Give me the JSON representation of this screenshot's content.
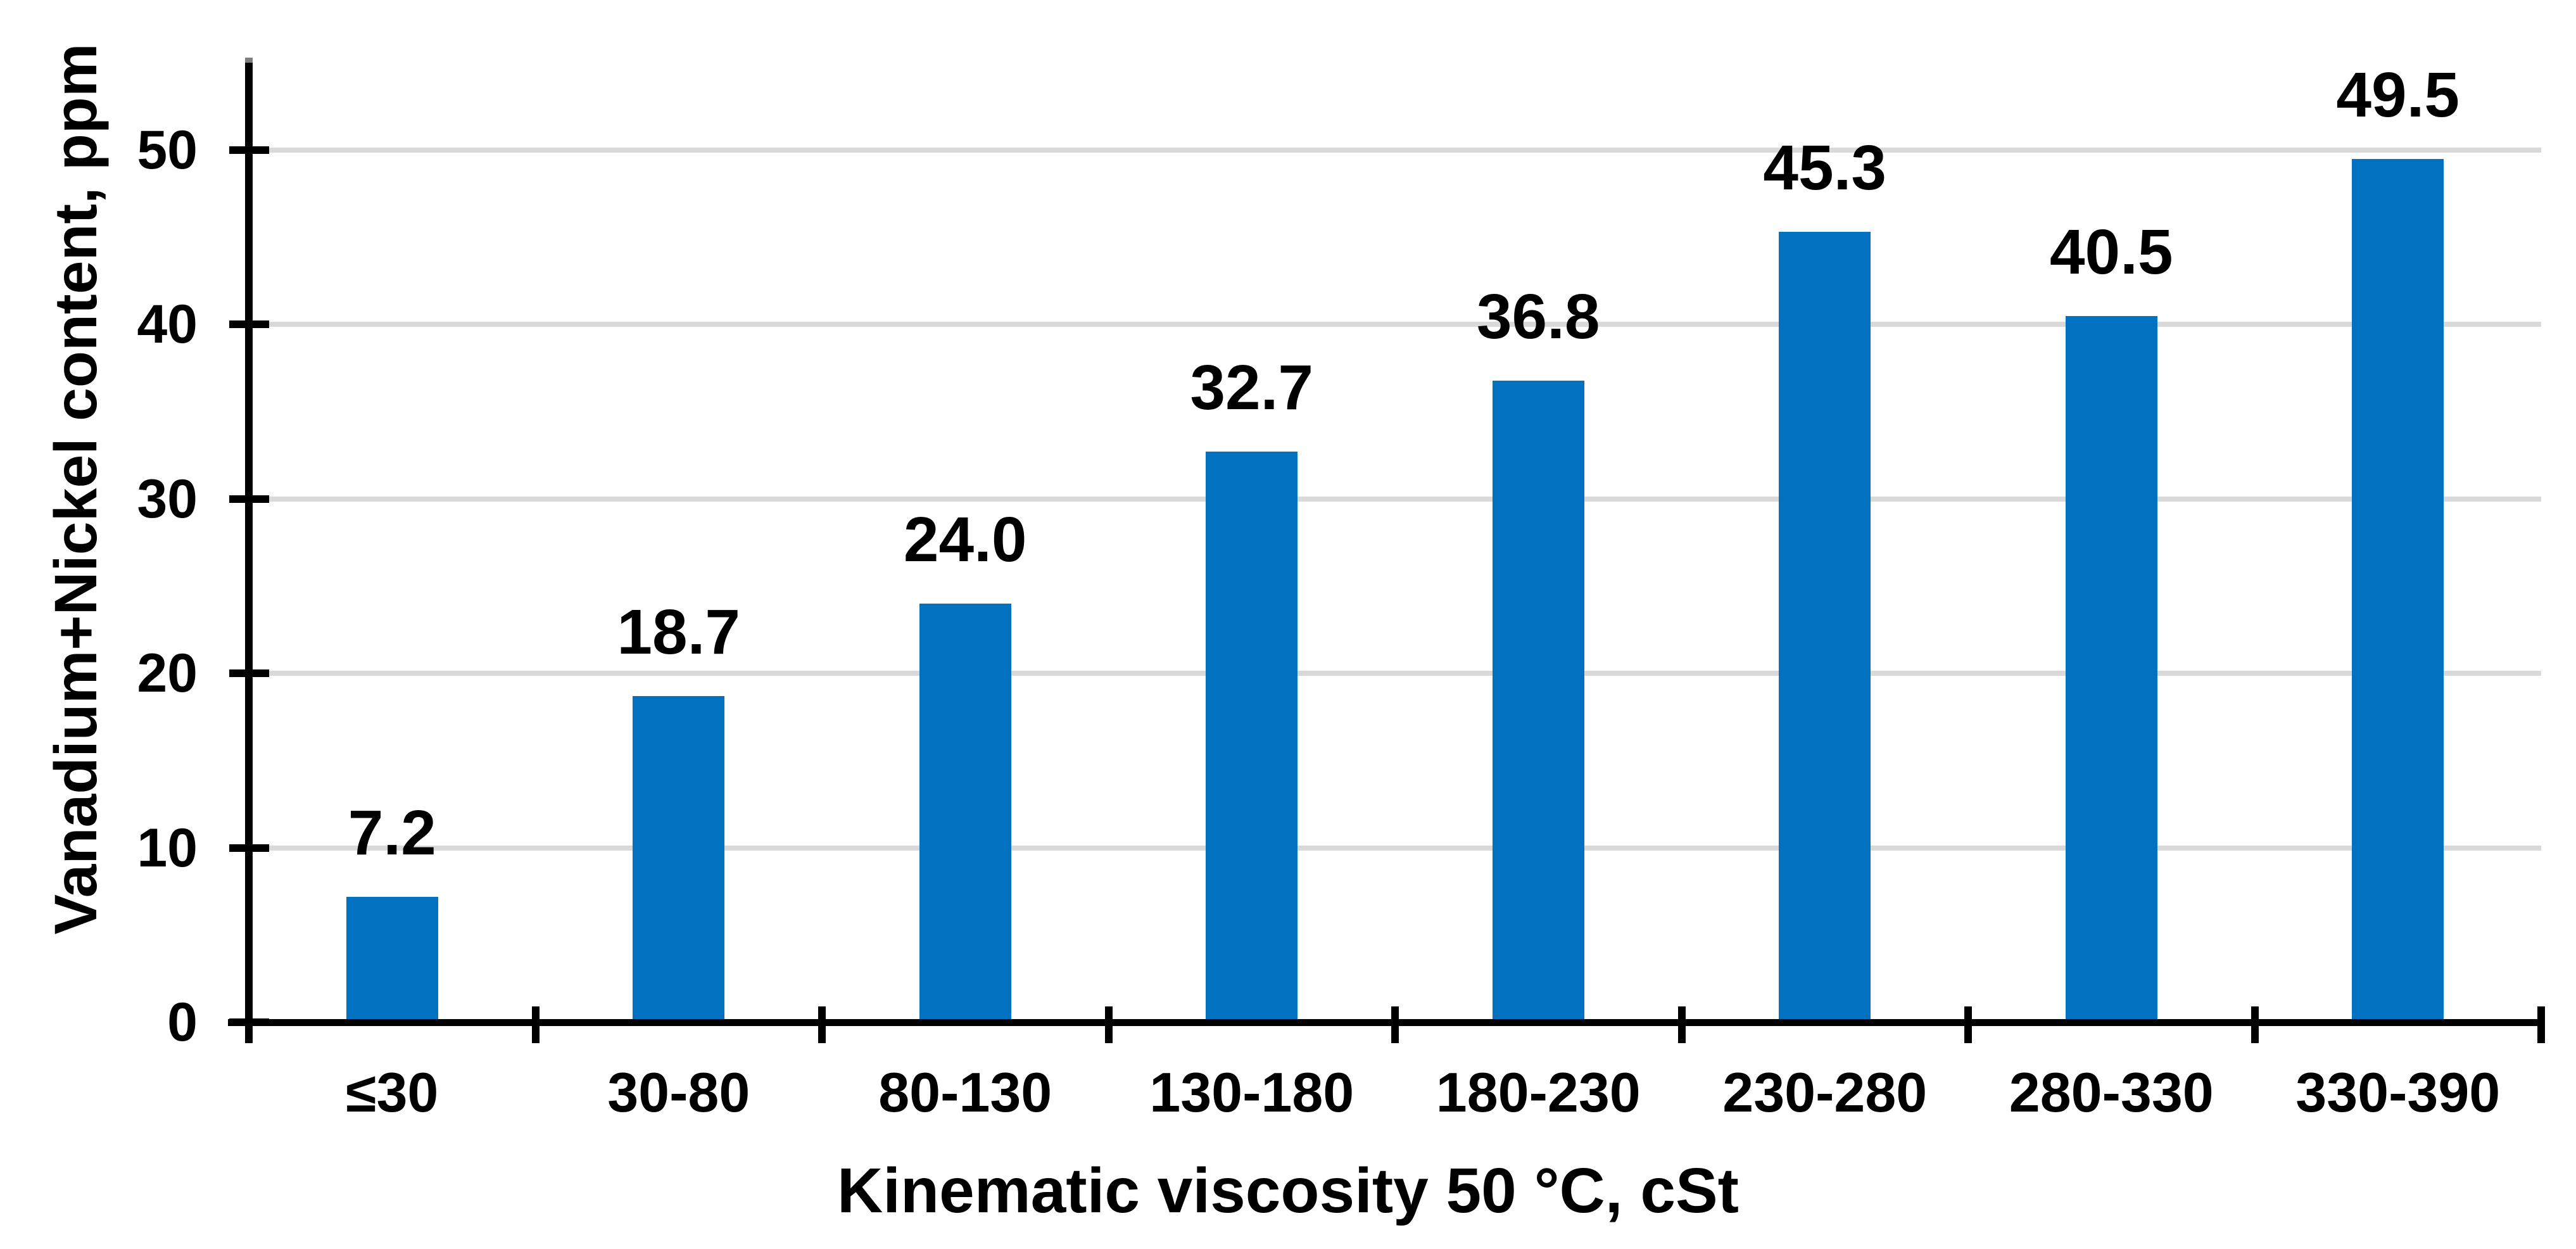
{
  "chart_data": {
    "type": "bar",
    "categories": [
      "≤30",
      "30-80",
      "80-130",
      "130-180",
      "180-230",
      "230-280",
      "280-330",
      "330-390"
    ],
    "values": [
      7.2,
      18.7,
      24.0,
      32.7,
      36.8,
      45.3,
      40.5,
      49.5
    ],
    "value_labels": [
      "7.2",
      "18.7",
      "24.0",
      "32.7",
      "36.8",
      "45.3",
      "40.5",
      "49.5"
    ],
    "xlabel": "Kinematic viscosity 50 °C, cSt",
    "ylabel": "Vanadium+Nickel content, ppm",
    "ylim": [
      0,
      55
    ],
    "yticks": [
      0,
      10,
      20,
      30,
      40,
      50
    ],
    "grid": "horizontal-only",
    "legend_position": "none",
    "colors": {
      "bar": "#0271C0",
      "gridline": "#D9D9D9",
      "axis": "#000000",
      "axis_top_cap": "#7F7F7F",
      "text": "#000000",
      "background": "#FFFFFF"
    }
  }
}
